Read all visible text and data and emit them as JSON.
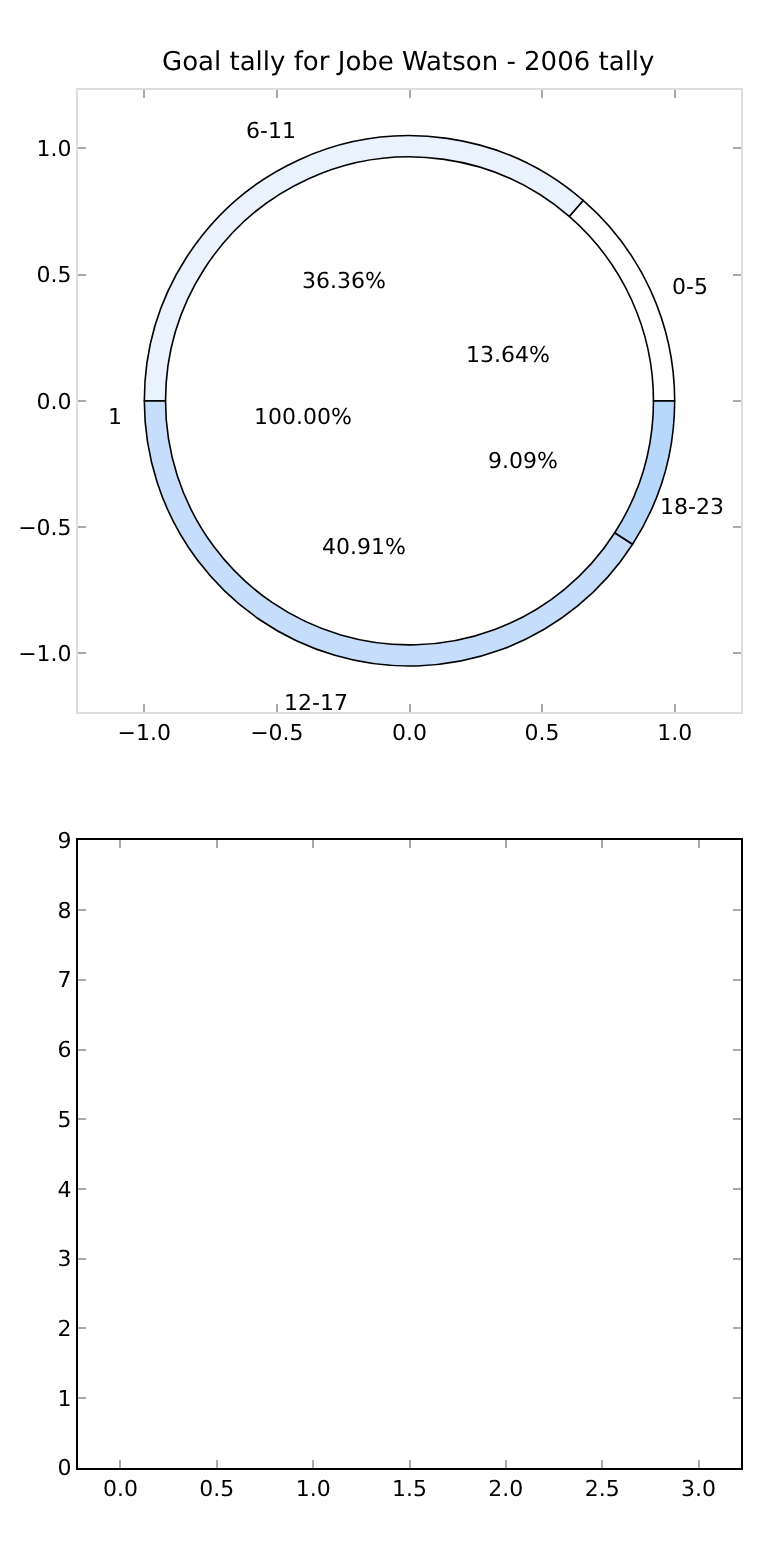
{
  "chart_data": [
    {
      "type": "scatter",
      "title": "Goal tally for Jobe Watson - 2006 tally",
      "xlim": [
        -1.25,
        1.25
      ],
      "xticks": [
        {
          "value": -1,
          "label": "−1.0"
        },
        {
          "value": -0.5,
          "label": "−0.5"
        },
        {
          "value": 0,
          "label": "0.0"
        },
        {
          "value": 0.5,
          "label": "0.5"
        },
        {
          "value": 1,
          "label": "1.0"
        }
      ],
      "ylim": [
        -1.23,
        1.23
      ],
      "yticks": [
        {
          "value": -1,
          "label": "−1.0"
        },
        {
          "value": -0.5,
          "label": "−0.5"
        },
        {
          "value": 0,
          "label": "0.0"
        },
        {
          "value": 0.5,
          "label": "0.5"
        },
        {
          "value": 1,
          "label": "1.0"
        }
      ]
    },
    {
      "type": "donut",
      "categories": [
        "0-5",
        "6-11",
        "12-17",
        "18-23"
      ],
      "values": [
        13.64,
        36.36,
        40.91,
        9.09
      ],
      "colors": [
        "#ffffff",
        "#eaf2fe",
        "#c6defc",
        "#b7d7fb"
      ],
      "value_labels": [
        "13.64%",
        "36.36%",
        "40.91%",
        "9.09%"
      ],
      "annotations": [
        "1",
        "100.00%"
      ]
    },
    {
      "type": "scatter",
      "xlim": [
        -0.22,
        3.22
      ],
      "xticks": [
        {
          "value": 0,
          "label": "0.0"
        },
        {
          "value": 0.5,
          "label": "0.5"
        },
        {
          "value": 1,
          "label": "1.0"
        },
        {
          "value": 1.5,
          "label": "1.5"
        },
        {
          "value": 2,
          "label": "2.0"
        },
        {
          "value": 2.5,
          "label": "2.5"
        },
        {
          "value": 3,
          "label": "3.0"
        }
      ],
      "ylim": [
        0,
        9
      ],
      "yticks": [
        0,
        1,
        2,
        3,
        4,
        5,
        6,
        7,
        8,
        9
      ]
    }
  ]
}
